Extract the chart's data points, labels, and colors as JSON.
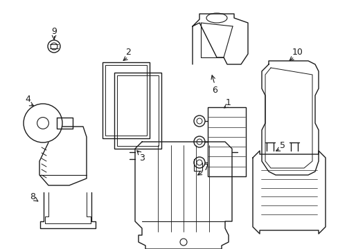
{
  "background_color": "#ffffff",
  "line_color": "#1a1a1a",
  "line_width": 1.0,
  "fig_width": 4.89,
  "fig_height": 3.6,
  "dpi": 100
}
